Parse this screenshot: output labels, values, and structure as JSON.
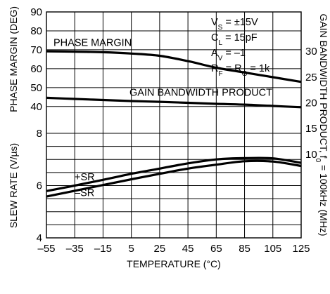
{
  "chart_data": {
    "type": "line",
    "x": [
      -55,
      -35,
      -15,
      5,
      25,
      45,
      65,
      85,
      105,
      125
    ],
    "x_tick_labels": [
      "–55",
      "–35",
      "–15",
      "5",
      "25",
      "45",
      "65",
      "85",
      "105",
      "125"
    ],
    "xlabel": "TEMPERATURE (°C)",
    "xlim": [
      -55,
      125
    ],
    "grid": true,
    "y_axes": [
      {
        "id": "phase_margin",
        "side": "left",
        "label": "PHASE MARGIN (DEG)",
        "ylim": [
          40,
          90
        ],
        "ticks": [
          40,
          50,
          60,
          70,
          80,
          90
        ],
        "tick_labels": [
          "40",
          "50",
          "60",
          "70",
          "80",
          "90"
        ]
      },
      {
        "id": "slew_rate",
        "side": "left",
        "label": "SLEW RATE (V/µs)",
        "ylim": [
          4,
          8
        ],
        "ticks": [
          4,
          6,
          8
        ],
        "tick_labels": [
          "4",
          "6",
          "8"
        ]
      },
      {
        "id": "gbw",
        "side": "right",
        "label": "GAIN BANDWIDTH PRODUCT, f0 = 100kHz (MHz)",
        "label_parts": {
          "main": "GAIN BANDWIDTH PRODUCT, f",
          "sub": "0",
          "rest": " = 100kHz (MHz)"
        },
        "ylim": [
          8.5,
          38
        ],
        "ticks": [
          10,
          15,
          20,
          25,
          30
        ],
        "tick_labels": [
          "10",
          "15",
          "20",
          "25",
          "30"
        ]
      }
    ],
    "series": [
      {
        "name": "PHASE MARGIN",
        "axis": "phase_margin",
        "values": [
          69.2,
          69.0,
          68.7,
          68.0,
          66.8,
          64.0,
          60.5,
          58.0,
          55.5,
          53.0
        ]
      },
      {
        "name": "GAIN BANDWIDTH PRODUCT",
        "axis": "gbw",
        "values": [
          20.97,
          20.75,
          20.55,
          20.35,
          20.2,
          20.0,
          19.8,
          19.65,
          19.4,
          19.15
        ]
      },
      {
        "name": "+SR",
        "axis": "slew_rate",
        "values": [
          5.79,
          6.0,
          6.22,
          6.45,
          6.65,
          6.85,
          7.0,
          7.05,
          7.04,
          6.87
        ]
      },
      {
        "name": "–SR",
        "axis": "slew_rate",
        "values": [
          5.58,
          5.8,
          6.02,
          6.24,
          6.45,
          6.65,
          6.8,
          6.93,
          6.92,
          6.75
        ]
      }
    ],
    "conditions": [
      {
        "main": "V",
        "sub": "S",
        "rest": " = ±15V"
      },
      {
        "main": "C",
        "sub": "L",
        "rest": " = 15pF"
      },
      {
        "main": "A",
        "sub": "V",
        "rest": " = –1"
      },
      {
        "main": "R",
        "sub": "F",
        "rest": " = R",
        "sub2": "G",
        "rest2": " = 1k"
      }
    ]
  }
}
